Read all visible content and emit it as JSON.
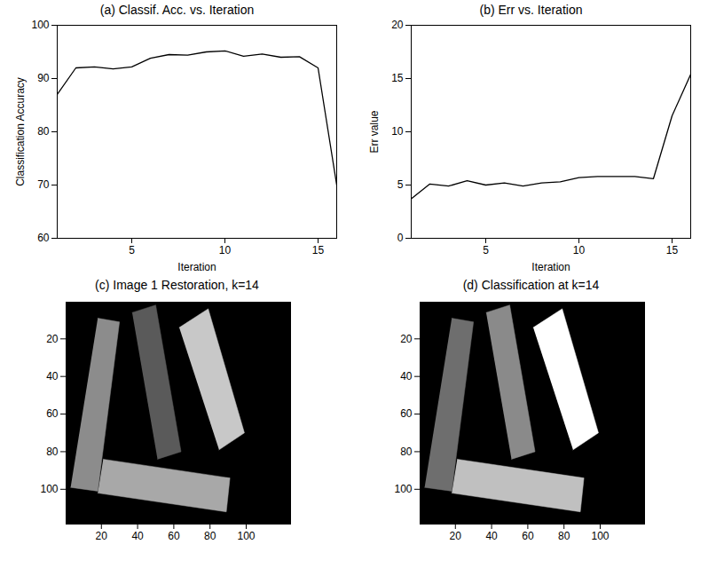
{
  "chart_data": [
    {
      "type": "line",
      "title": "(a) Classif. Acc. vs. Iteration",
      "x_label": "Iteration",
      "y_label": "Classification Accuracy",
      "x": [
        1,
        2,
        3,
        4,
        5,
        6,
        7,
        8,
        9,
        10,
        11,
        12,
        13,
        14,
        15,
        16
      ],
      "values": [
        87,
        92,
        92.2,
        91.8,
        92.2,
        93.8,
        94.5,
        94.4,
        95,
        95.2,
        94.2,
        94.6,
        94,
        94.1,
        92,
        70
      ],
      "color": "#000000",
      "xlim": [
        1,
        16
      ],
      "xticks": [
        5,
        10,
        15
      ],
      "ylim": [
        60,
        100
      ],
      "yticks": [
        60,
        70,
        80,
        90,
        100
      ]
    },
    {
      "type": "line",
      "title": "(b) Err vs. Iteration",
      "x_label": "Iteration",
      "y_label": "Err value",
      "x": [
        1,
        2,
        3,
        4,
        5,
        6,
        7,
        8,
        9,
        10,
        11,
        12,
        13,
        14,
        15,
        16
      ],
      "values": [
        3.7,
        5.1,
        4.9,
        5.4,
        5.0,
        5.2,
        4.9,
        5.2,
        5.3,
        5.7,
        5.8,
        5.8,
        5.8,
        5.6,
        11.5,
        15.4
      ],
      "color": "#000000",
      "xlim": [
        1,
        16
      ],
      "xticks": [
        5,
        10,
        15
      ],
      "ylim": [
        0,
        20
      ],
      "yticks": [
        0,
        5,
        10,
        15,
        20
      ]
    },
    {
      "type": "image",
      "title": "(c) Image 1 Restoration, k=14",
      "xlim": [
        0.5,
        124.5
      ],
      "xticks": [
        20,
        40,
        60,
        80,
        100
      ],
      "ylim": [
        0.5,
        118.5
      ],
      "yticks": [
        20,
        40,
        60,
        80,
        100
      ],
      "shapes": [
        {
          "x": [
            18,
            30,
            18,
            3
          ],
          "y": [
            9,
            11,
            101,
            99
          ],
          "color": "#8c8c8c"
        },
        {
          "x": [
            37,
            50,
            64,
            51
          ],
          "y": [
            6,
            2,
            80,
            84
          ],
          "color": "#5a5a5a"
        },
        {
          "x": [
            63,
            79,
            99,
            85
          ],
          "y": [
            14,
            4,
            70,
            79
          ],
          "color": "#c8c8c8"
        },
        {
          "x": [
            21,
            91,
            89,
            18
          ],
          "y": [
            84,
            94,
            112,
            102
          ],
          "color": "#a8a8a8"
        }
      ]
    },
    {
      "type": "image",
      "title": "(d) Classification at k=14",
      "xlim": [
        0.5,
        124.5
      ],
      "xticks": [
        20,
        40,
        60,
        80,
        100
      ],
      "ylim": [
        0.5,
        118.5
      ],
      "yticks": [
        20,
        40,
        60,
        80,
        100
      ],
      "shapes": [
        {
          "x": [
            18,
            30,
            18,
            3
          ],
          "y": [
            9,
            11,
            101,
            99
          ],
          "color": "#6e6e6e"
        },
        {
          "x": [
            37,
            50,
            64,
            51
          ],
          "y": [
            6,
            2,
            80,
            84
          ],
          "color": "#8a8a8a"
        },
        {
          "x": [
            63,
            79,
            99,
            85
          ],
          "y": [
            14,
            4,
            70,
            79
          ],
          "color": "#ffffff"
        },
        {
          "x": [
            21,
            91,
            89,
            18
          ],
          "y": [
            84,
            94,
            112,
            102
          ],
          "color": "#c0c0c0"
        }
      ]
    }
  ]
}
